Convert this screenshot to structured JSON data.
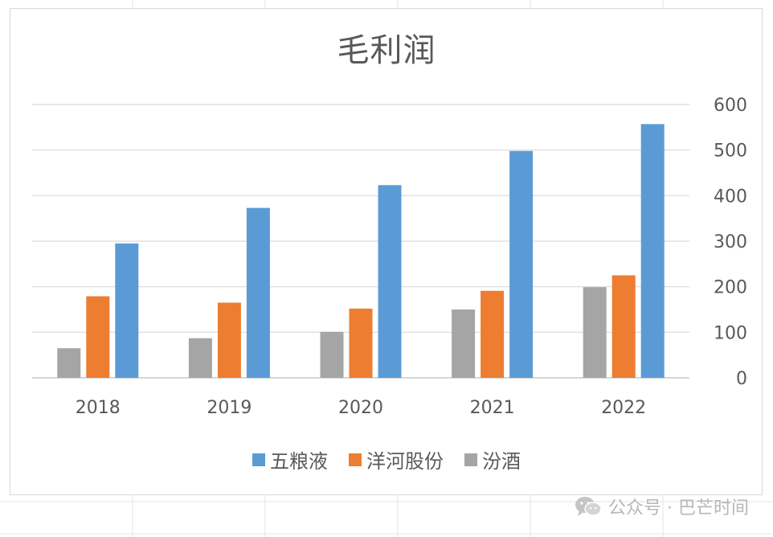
{
  "chart_data": {
    "type": "bar",
    "title": "毛利润",
    "categories": [
      "2018",
      "2019",
      "2020",
      "2021",
      "2022"
    ],
    "series": [
      {
        "name": "汾酒",
        "color": "#a5a5a5",
        "values": [
          65,
          87,
          101,
          150,
          199
        ]
      },
      {
        "name": "洋河股份",
        "color": "#ed7d31",
        "values": [
          179,
          165,
          152,
          191,
          225
        ]
      },
      {
        "name": "五粮液",
        "color": "#5b9bd5",
        "values": [
          295,
          373,
          423,
          498,
          557
        ]
      }
    ],
    "legend_order": [
      "五粮液",
      "洋河股份",
      "汾酒"
    ],
    "ylim": [
      0,
      600
    ],
    "yticks": [
      0,
      100,
      200,
      300,
      400,
      500,
      600
    ],
    "y_axis_side": "right",
    "grid": true,
    "legend_position": "bottom"
  },
  "watermark": {
    "icon": "wechat-icon",
    "text": "公众号 · 巴芒时间"
  }
}
